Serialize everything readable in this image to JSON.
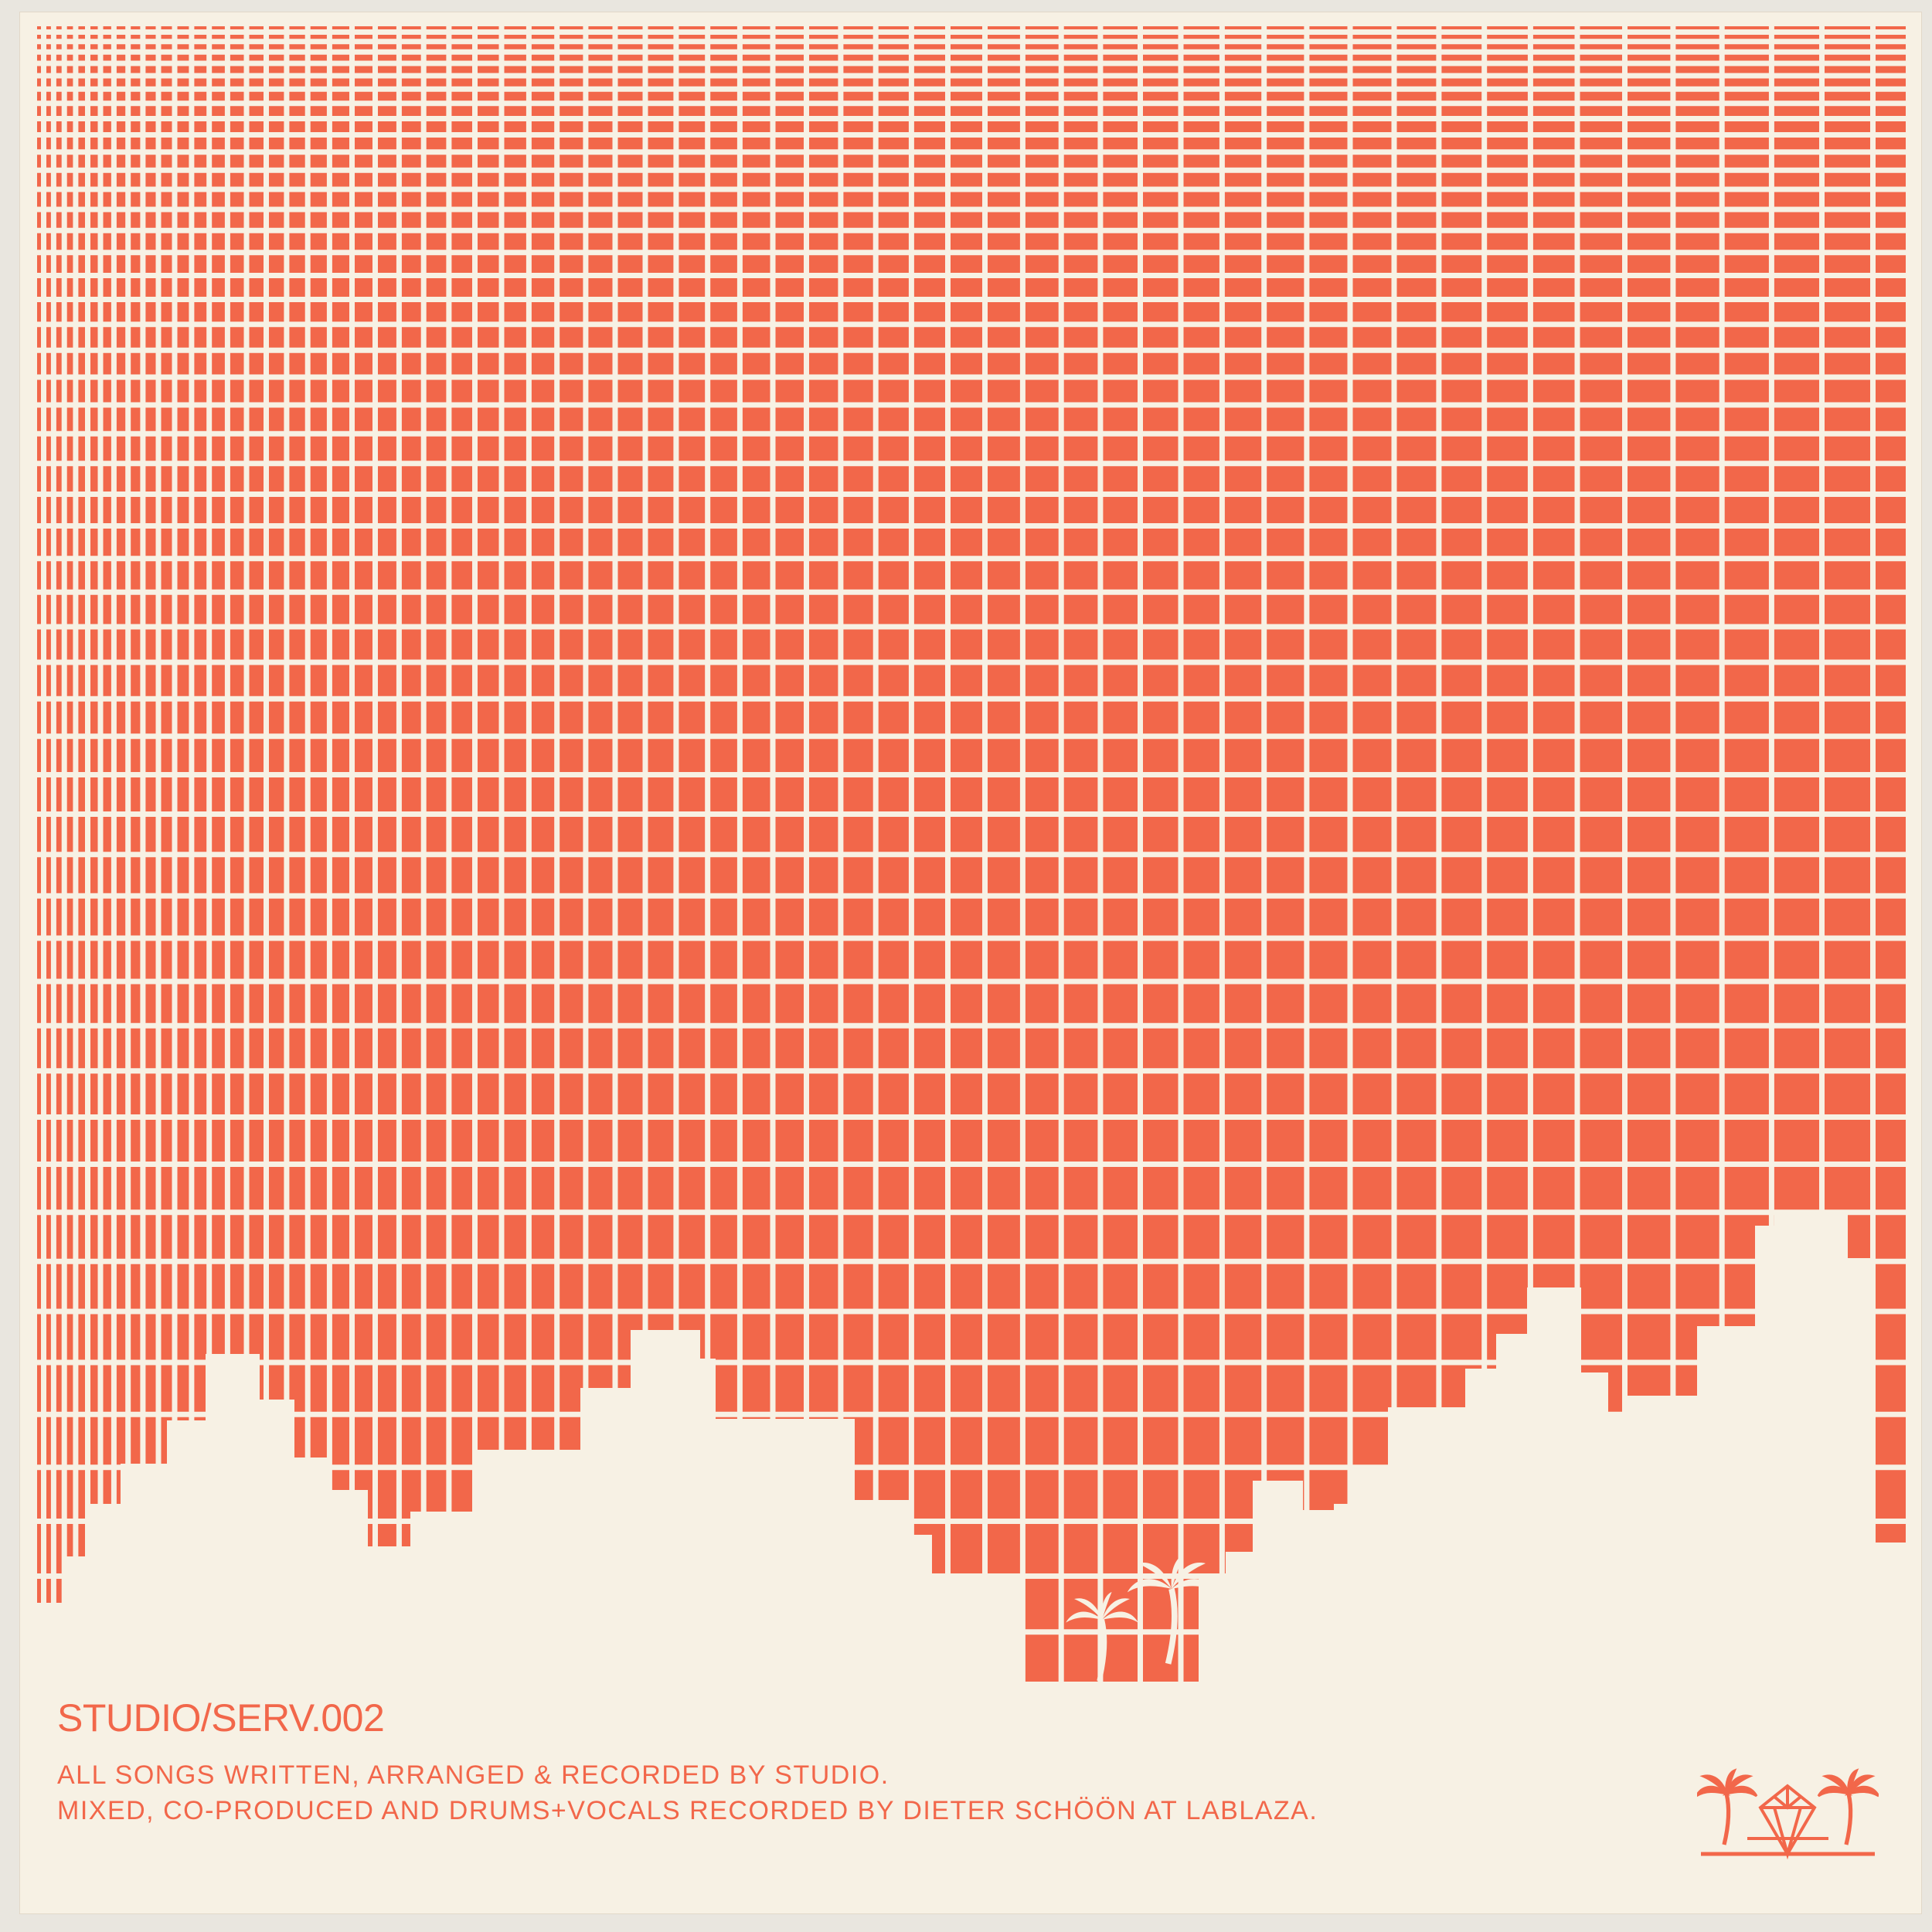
{
  "colors": {
    "accent": "#f2674a",
    "paper": "#f7f1e4"
  },
  "sleeve": {
    "catalog_number": "STUDIO/SERV.002",
    "credit_line_1": "ALL SONGS WRITTEN, ARRANGED & RECORDED BY STUDIO.",
    "credit_line_2": "MIXED, CO-PRODUCED AND DRUMS+VOCALS RECORDED BY DIETER SCHÖÖN AT LABLAZA."
  },
  "icons": {
    "skyline_palms": "palm-tree-icon",
    "label_logo": "palm-diamond-logo-icon"
  }
}
